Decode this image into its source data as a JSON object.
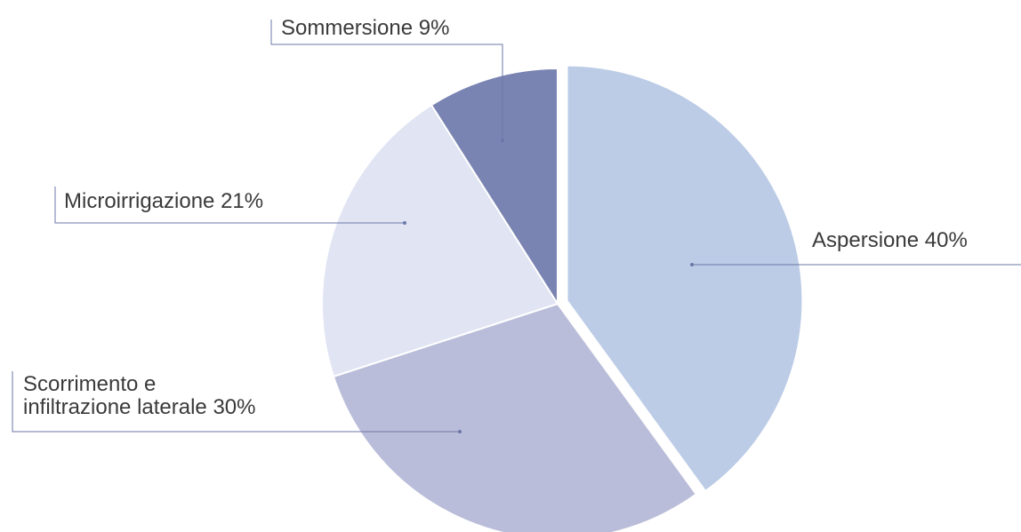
{
  "chart_data": {
    "type": "pie",
    "categories": [
      "Aspersione",
      "Scorrimento e\ninfiltrazione laterale",
      "Microirrigazione",
      "Sommersione"
    ],
    "values": [
      40,
      30,
      21,
      9
    ],
    "value_labels": [
      "40%",
      "30%",
      "21%",
      "9%"
    ],
    "colors": [
      "#bccce6",
      "#babdd9",
      "#e0e4f3",
      "#7a84b2"
    ],
    "exploded": [
      true,
      false,
      false,
      false
    ]
  }
}
